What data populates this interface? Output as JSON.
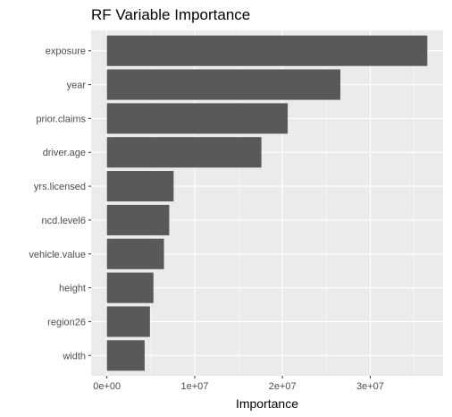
{
  "chart_data": {
    "type": "bar",
    "orientation": "horizontal",
    "title": "RF Variable Importance",
    "xlabel": "Importance",
    "ylabel": "",
    "categories": [
      "exposure",
      "year",
      "prior.claims",
      "driver.age",
      "yrs.licensed",
      "ncd.level6",
      "vehicle.value",
      "height",
      "region26",
      "width"
    ],
    "values": [
      36500000,
      26600000,
      20600000,
      17600000,
      7600000,
      7100000,
      6500000,
      5300000,
      4900000,
      4300000
    ],
    "xlim": [
      -1800000,
      38300000
    ],
    "x_ticks": [
      0,
      10000000,
      20000000,
      30000000
    ],
    "x_tick_labels": [
      "0e+00",
      "1e+07",
      "2e+07",
      "3e+07"
    ],
    "grid": true,
    "legend": "none",
    "colors": {
      "bar": "#595959",
      "panel": "#ebebeb",
      "grid": "#ffffff"
    }
  }
}
